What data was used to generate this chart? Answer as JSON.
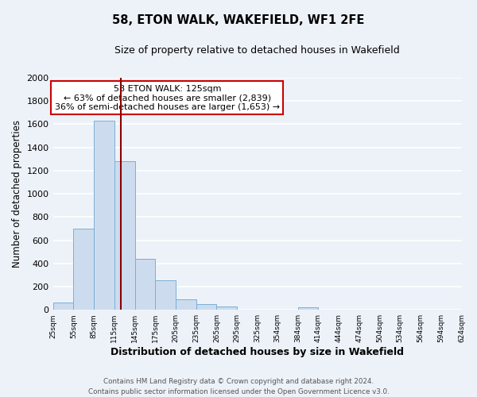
{
  "title": "58, ETON WALK, WAKEFIELD, WF1 2FE",
  "subtitle": "Size of property relative to detached houses in Wakefield",
  "xlabel": "Distribution of detached houses by size in Wakefield",
  "ylabel": "Number of detached properties",
  "bar_edges": [
    25,
    55,
    85,
    115,
    145,
    175,
    205,
    235,
    265,
    295,
    325,
    354,
    384,
    414,
    444,
    474,
    504,
    534,
    564,
    594,
    624
  ],
  "bar_heights": [
    65,
    700,
    1630,
    1280,
    440,
    255,
    90,
    50,
    30,
    0,
    0,
    0,
    20,
    0,
    0,
    0,
    0,
    0,
    0,
    0
  ],
  "bar_color": "#ccdcee",
  "bar_edge_color": "#7aafd4",
  "property_size": 125,
  "vline_color": "#8b0000",
  "annotation_line1": "58 ETON WALK: 125sqm",
  "annotation_line2": "← 63% of detached houses are smaller (2,839)",
  "annotation_line3": "36% of semi-detached houses are larger (1,653) →",
  "annotation_box_edge_color": "#cc0000",
  "ylim": [
    0,
    2000
  ],
  "yticks": [
    0,
    200,
    400,
    600,
    800,
    1000,
    1200,
    1400,
    1600,
    1800,
    2000
  ],
  "tick_labels": [
    "25sqm",
    "55sqm",
    "85sqm",
    "115sqm",
    "145sqm",
    "175sqm",
    "205sqm",
    "235sqm",
    "265sqm",
    "295sqm",
    "325sqm",
    "354sqm",
    "384sqm",
    "414sqm",
    "444sqm",
    "474sqm",
    "504sqm",
    "534sqm",
    "564sqm",
    "594sqm",
    "624sqm"
  ],
  "footer_line1": "Contains HM Land Registry data © Crown copyright and database right 2024.",
  "footer_line2": "Contains public sector information licensed under the Open Government Licence v3.0.",
  "bg_color": "#edf2f9",
  "grid_color": "white"
}
